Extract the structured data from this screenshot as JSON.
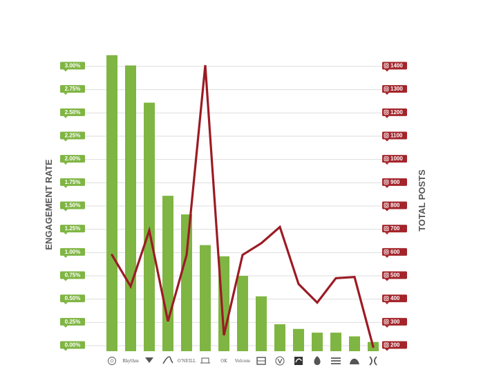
{
  "chart_data": {
    "type": "bar",
    "categories": [
      "Element",
      "Rhythm",
      "Vissla",
      "Salty Crew",
      "O'Neill",
      "Dark Seas",
      "OK",
      "Volcom surf",
      "Brixton",
      "Volcom",
      "Rip Curl",
      "Nixon",
      "Billabong",
      "Quiksilver",
      "Hurley"
    ],
    "category_labels": [
      "",
      "Rhythm",
      "",
      "",
      "O'NEILL",
      "",
      "OK",
      "Volcom",
      "",
      "",
      "",
      "",
      "",
      "",
      ""
    ],
    "series": [
      {
        "type": "bar",
        "axis": "left",
        "values": [
          3.12,
          3.01,
          2.61,
          1.61,
          1.41,
          1.08,
          0.96,
          0.75,
          0.53,
          0.23,
          0.18,
          0.14,
          0.14,
          0.1,
          0.04
        ],
        "color": "#7fb542"
      },
      {
        "type": "line",
        "axis": "right",
        "values": [
          590,
          455,
          695,
          305,
          590,
          1405,
          245,
          590,
          640,
          710,
          465,
          385,
          490,
          495,
          195
        ],
        "color": "#9b1b24"
      }
    ],
    "ylabel": "ENGAGEMENT RATE",
    "y2label": "TOTAL POSTS",
    "y_ticks": [
      "0.00%",
      "0.25%",
      "0.50%",
      "0.75%",
      "1.00%",
      "1.25%",
      "1.50%",
      "1.75%",
      "2.00%",
      "2.25%",
      "2.50%",
      "2.75%",
      "3.00%"
    ],
    "y2_ticks": [
      "200",
      "300",
      "400",
      "500",
      "600",
      "700",
      "800",
      "900",
      "1000",
      "1100",
      "1200",
      "1300",
      "1400"
    ],
    "ylim": [
      0,
      3.0
    ],
    "y2lim": [
      200,
      1400
    ],
    "grid": true,
    "colors": {
      "bar": "#7fb542",
      "line": "#9b1b24",
      "left_badge": "#7fb542",
      "right_badge": "#a3252b",
      "grid": "#dddddd",
      "axis_title": "#555555"
    }
  }
}
